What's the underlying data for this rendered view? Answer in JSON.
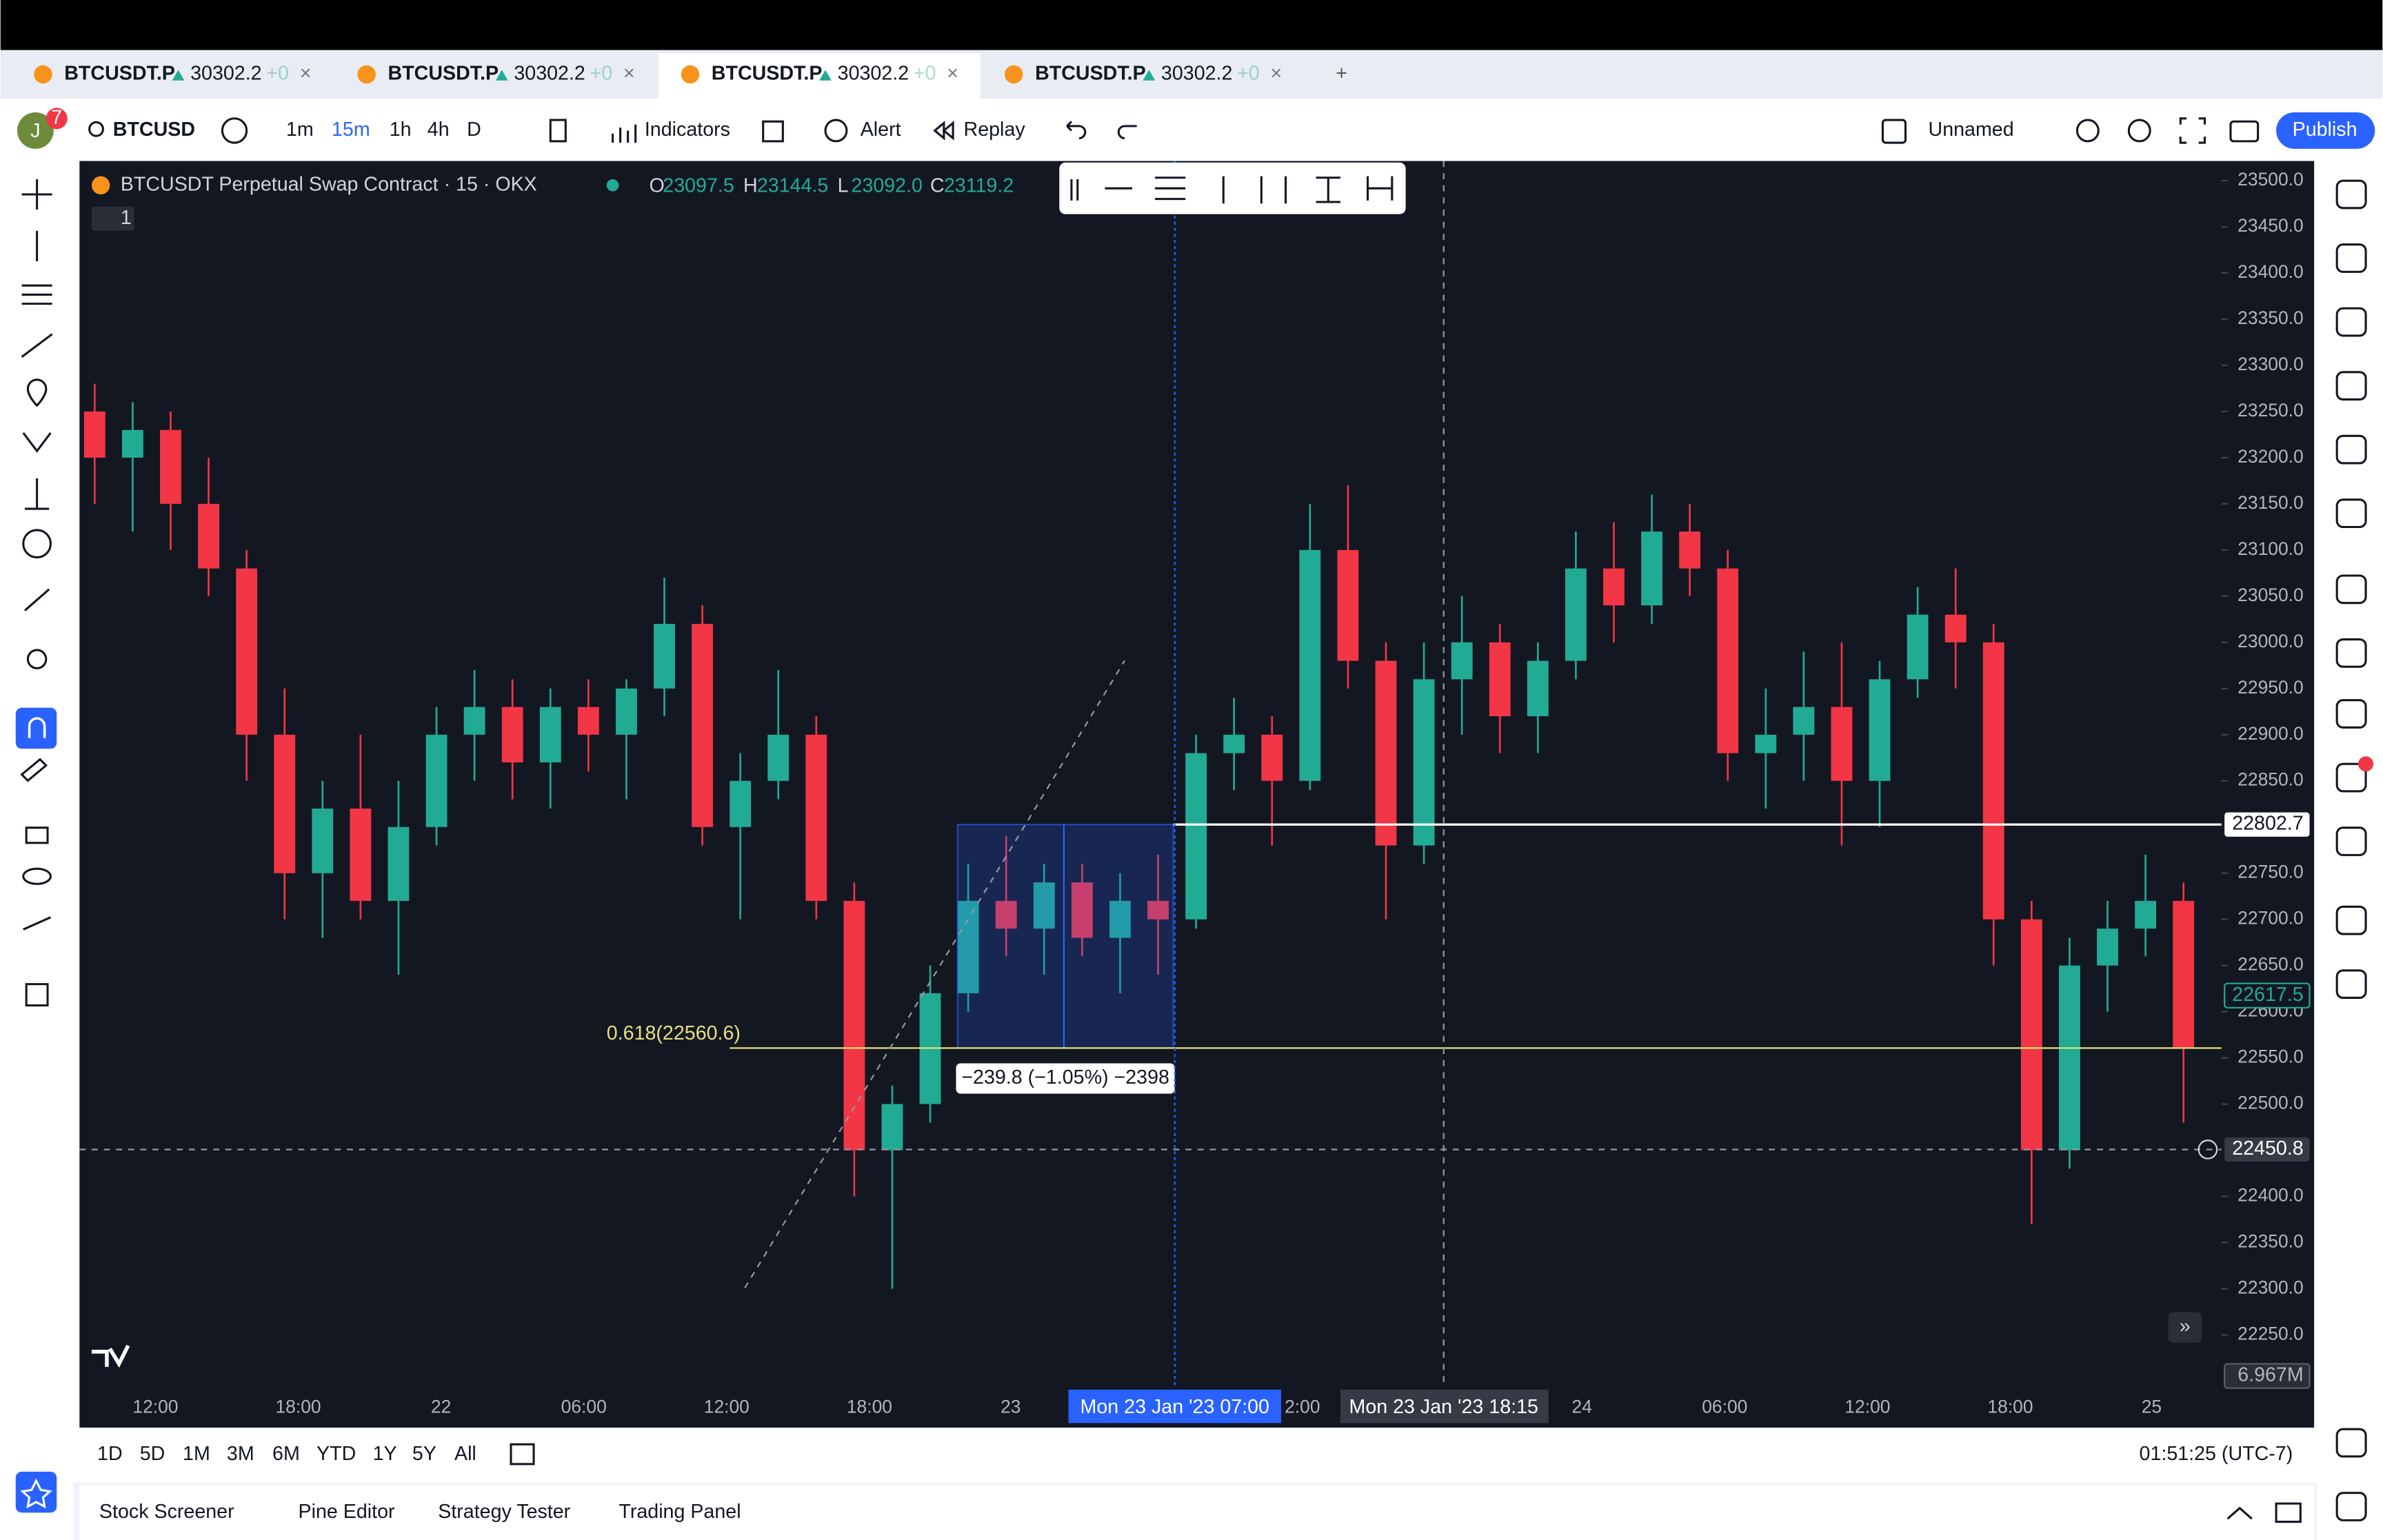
{
  "tabs": [
    {
      "symbol": "BTCUSDT.P",
      "price": "30302.2",
      "change": "+0"
    },
    {
      "symbol": "BTCUSDT.P",
      "price": "30302.2",
      "change": "+0"
    },
    {
      "symbol": "BTCUSDT.P",
      "price": "30302.2",
      "change": "+0"
    },
    {
      "symbol": "BTCUSDT.P",
      "price": "30302.2",
      "change": "+0"
    }
  ],
  "toolbar": {
    "avatar": "J",
    "badge": "7",
    "symbol": "BTCUSD",
    "intervals": [
      "1m",
      "15m",
      "1h",
      "4h",
      "D"
    ],
    "indicators": "Indicators",
    "alert": "Alert",
    "replay": "Replay",
    "layout_name": "Unnamed",
    "publish": "Publish"
  },
  "legend": {
    "title": "BTCUSDT Perpetual Swap Contract · 15 · OKX",
    "collapsed_count": "1",
    "ohlc": [
      {
        "label": "O",
        "value": "23097.5"
      },
      {
        "label": "H",
        "value": "23144.5"
      },
      {
        "label": "L",
        "value": "23092.0"
      },
      {
        "label": "C",
        "value": "23119.2"
      }
    ]
  },
  "chart_data": {
    "type": "candlestick",
    "ylim": [
      22194,
      23518
    ],
    "yticks": [
      {
        "value": 23500,
        "label": "23500.0"
      },
      {
        "value": 23450,
        "label": "23450.0"
      },
      {
        "value": 23400,
        "label": "23400.0"
      },
      {
        "value": 23350,
        "label": "23350.0"
      },
      {
        "value": 23300,
        "label": "23300.0"
      },
      {
        "value": 23250,
        "label": "23250.0"
      },
      {
        "value": 23200,
        "label": "23200.0"
      },
      {
        "value": 23150,
        "label": "23150.0"
      },
      {
        "value": 23100,
        "label": "23100.0"
      },
      {
        "value": 23050,
        "label": "23050.0"
      },
      {
        "value": 23000,
        "label": "23000.0"
      },
      {
        "value": 22950,
        "label": "22950.0"
      },
      {
        "value": 22900,
        "label": "22900.0"
      },
      {
        "value": 22850,
        "label": "22850.0"
      },
      {
        "value": 22750,
        "label": "22750.0"
      },
      {
        "value": 22700,
        "label": "22700.0"
      },
      {
        "value": 22650,
        "label": "22650.0"
      },
      {
        "value": 22600,
        "label": "22600.0"
      },
      {
        "value": 22550,
        "label": "22550.0"
      },
      {
        "value": 22500,
        "label": "22500.0"
      },
      {
        "value": 22400,
        "label": "22400.0"
      },
      {
        "value": 22350,
        "label": "22350.0"
      },
      {
        "value": 22300,
        "label": "22300.0"
      },
      {
        "value": 22250,
        "label": "22250.0"
      }
    ],
    "xtick_labels": [
      "12:00",
      "18:00",
      "22",
      "06:00",
      "12:00",
      "18:00",
      "23",
      "2:00",
      "24",
      "06:00",
      "12:00",
      "18:00",
      "25"
    ],
    "up_color": "#22ab94",
    "down_color": "#f23645",
    "candles": [
      [
        23250,
        23280,
        23150,
        23200
      ],
      [
        23200,
        23260,
        23120,
        23230
      ],
      [
        23230,
        23250,
        23100,
        23150
      ],
      [
        23150,
        23200,
        23050,
        23080
      ],
      [
        23080,
        23100,
        22850,
        22900
      ],
      [
        22900,
        22950,
        22700,
        22750
      ],
      [
        22750,
        22850,
        22680,
        22820
      ],
      [
        22820,
        22900,
        22700,
        22720
      ],
      [
        22720,
        22850,
        22640,
        22800
      ],
      [
        22800,
        22930,
        22780,
        22900
      ],
      [
        22900,
        22970,
        22850,
        22930
      ],
      [
        22930,
        22960,
        22830,
        22870
      ],
      [
        22870,
        22950,
        22820,
        22930
      ],
      [
        22930,
        22960,
        22860,
        22900
      ],
      [
        22900,
        22960,
        22830,
        22950
      ],
      [
        22950,
        23070,
        22920,
        23020
      ],
      [
        23020,
        23040,
        22780,
        22800
      ],
      [
        22800,
        22880,
        22700,
        22850
      ],
      [
        22850,
        22970,
        22830,
        22900
      ],
      [
        22900,
        22920,
        22700,
        22720
      ],
      [
        22720,
        22740,
        22400,
        22450
      ],
      [
        22450,
        22520,
        22300,
        22500
      ],
      [
        22500,
        22650,
        22480,
        22620
      ],
      [
        22620,
        22760,
        22600,
        22720
      ],
      [
        22720,
        22790,
        22660,
        22690
      ],
      [
        22690,
        22760,
        22640,
        22740
      ],
      [
        22740,
        22760,
        22660,
        22680
      ],
      [
        22680,
        22750,
        22620,
        22720
      ],
      [
        22720,
        22770,
        22640,
        22700
      ],
      [
        22700,
        22900,
        22690,
        22880
      ],
      [
        22880,
        22940,
        22840,
        22900
      ],
      [
        22900,
        22920,
        22780,
        22850
      ],
      [
        22850,
        23150,
        22840,
        23100
      ],
      [
        23100,
        23170,
        22950,
        22980
      ],
      [
        22980,
        23000,
        22700,
        22780
      ],
      [
        22780,
        23000,
        22760,
        22960
      ],
      [
        22960,
        23050,
        22900,
        23000
      ],
      [
        23000,
        23020,
        22880,
        22920
      ],
      [
        22920,
        23000,
        22880,
        22980
      ],
      [
        22980,
        23120,
        22960,
        23080
      ],
      [
        23080,
        23130,
        23000,
        23040
      ],
      [
        23040,
        23160,
        23020,
        23120
      ],
      [
        23120,
        23150,
        23050,
        23080
      ],
      [
        23080,
        23100,
        22850,
        22880
      ],
      [
        22880,
        22950,
        22820,
        22900
      ],
      [
        22900,
        22990,
        22850,
        22930
      ],
      [
        22930,
        23000,
        22780,
        22850
      ],
      [
        22850,
        22980,
        22800,
        22960
      ],
      [
        22960,
        23060,
        22940,
        23030
      ],
      [
        23030,
        23080,
        22950,
        23000
      ],
      [
        23000,
        23020,
        22650,
        22700
      ],
      [
        22700,
        22720,
        22370,
        22450
      ],
      [
        22450,
        22680,
        22430,
        22650
      ],
      [
        22650,
        22720,
        22600,
        22690
      ],
      [
        22690,
        22770,
        22660,
        22720
      ],
      [
        22720,
        22740,
        22480,
        22560
      ]
    ],
    "price_line": {
      "value": 22802.7,
      "label": "22802.7"
    },
    "crosshair_price": {
      "value": 22450.8,
      "label": "22450.8"
    },
    "last_price": {
      "value": 22617.5,
      "label": "22617.5"
    },
    "fib_level": {
      "value": 22560.6,
      "label": "0.618(22560.6)"
    },
    "measure_label": "−239.8 (−1.05%) −2398",
    "volume_label": "6.967M",
    "crosshair_time": "Mon 23 Jan '23   07:00",
    "cursor_time": "Mon 23 Jan '23   18:15"
  },
  "range_bar": {
    "ranges": [
      "1D",
      "5D",
      "1M",
      "3M",
      "6M",
      "YTD",
      "1Y",
      "5Y",
      "All"
    ],
    "clock": "01:51:25 (UTC-7)"
  },
  "bottom_tabs": [
    "Stock Screener",
    "Pine Editor",
    "Strategy Tester",
    "Trading Panel"
  ]
}
